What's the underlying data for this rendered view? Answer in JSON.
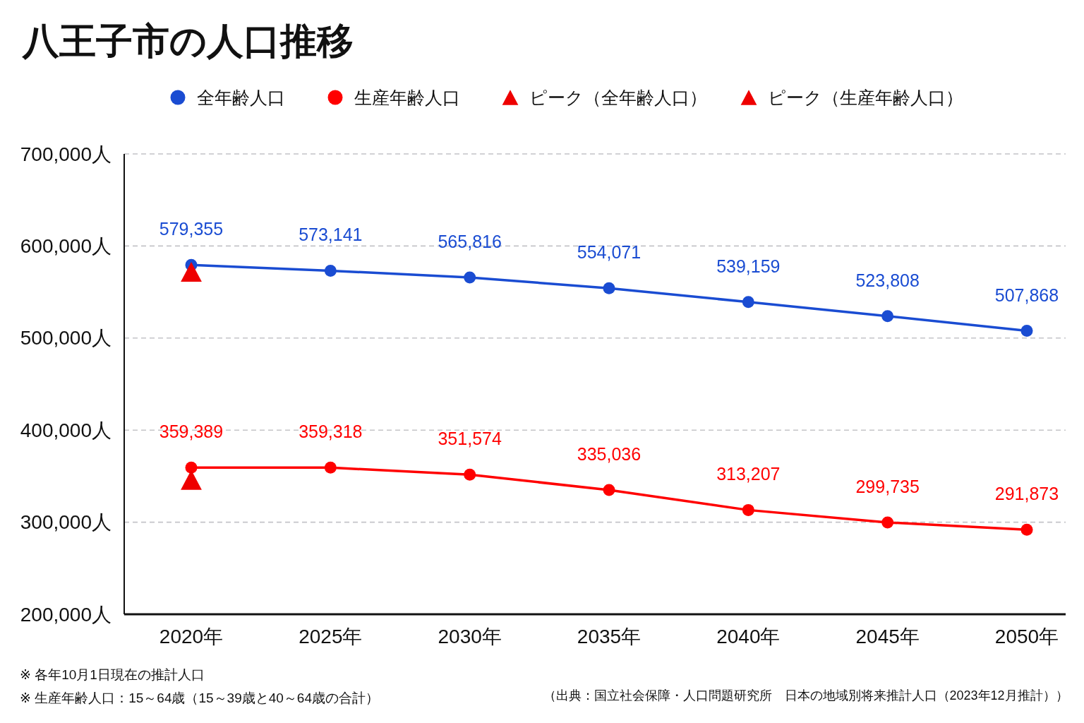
{
  "chart_data": {
    "type": "line",
    "title": "八王子市の人口推移",
    "categories": [
      "2020年",
      "2025年",
      "2030年",
      "2035年",
      "2040年",
      "2045年",
      "2050年"
    ],
    "series": [
      {
        "name": "全年齢人口",
        "color": "#1a4cd2",
        "values": [
          579355,
          573141,
          565816,
          554071,
          539159,
          523808,
          507868
        ],
        "value_labels": [
          "579,355",
          "573,141",
          "565,816",
          "554,071",
          "539,159",
          "523,808",
          "507,868"
        ]
      },
      {
        "name": "生産年齢人口",
        "color": "#ff0000",
        "values": [
          359389,
          359318,
          351574,
          335036,
          313207,
          299735,
          291873
        ],
        "value_labels": [
          "359,389",
          "359,318",
          "351,574",
          "335,036",
          "313,207",
          "299,735",
          "291,873"
        ]
      },
      {
        "name": "ピーク（全年齢人口）",
        "type": "scatter",
        "marker": "triangle",
        "color": "#ee0000",
        "values": [
          572000,
          null,
          null,
          null,
          null,
          null,
          null
        ]
      },
      {
        "name": "ピーク（生産年齢人口）",
        "type": "scatter",
        "marker": "triangle",
        "color": "#ee0000",
        "values": [
          346000,
          null,
          null,
          null,
          null,
          null,
          null
        ]
      }
    ],
    "ylim": [
      200000,
      700000
    ],
    "yticks": [
      {
        "value": 200000,
        "label": "200,000人"
      },
      {
        "value": 300000,
        "label": "300,000人"
      },
      {
        "value": 400000,
        "label": "400,000人"
      },
      {
        "value": 500000,
        "label": "500,000人"
      },
      {
        "value": 600000,
        "label": "600,000人"
      },
      {
        "value": 700000,
        "label": "700,000人"
      }
    ],
    "grid": "y",
    "legend": "top",
    "marker": "circle",
    "annotations": [
      "※ 各年10月1日現在の推計人口",
      "※ 生産年齢人口：15～64歳（15～39歳と40～64歳の合計）",
      "（出典：国立社会保障・人口問題研究所　日本の地域別将来推計人口（2023年12月推計））"
    ]
  }
}
